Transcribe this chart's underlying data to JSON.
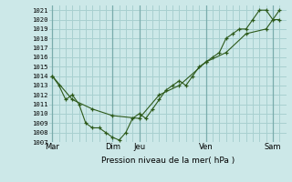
{
  "xlabel": "Pression niveau de la mer( hPa )",
  "ylim": [
    1007,
    1021.5
  ],
  "yticks": [
    1007,
    1008,
    1009,
    1010,
    1011,
    1012,
    1013,
    1014,
    1015,
    1016,
    1017,
    1018,
    1019,
    1020,
    1021
  ],
  "xtick_labels": [
    "Mar",
    "Dim",
    "Jeu",
    "Ven",
    "Sam"
  ],
  "xtick_positions": [
    0,
    4.5,
    6.5,
    11.5,
    16.5
  ],
  "day_vlines": [
    0,
    4.5,
    6.5,
    11.5,
    16.5
  ],
  "bg_color": "#cce8e8",
  "grid_color": "#a8d0d0",
  "line_color": "#2d5a1b",
  "xlim": [
    -0.2,
    17.5
  ],
  "line1_x": [
    0,
    0.5,
    1.0,
    1.5,
    2.0,
    2.5,
    3.0,
    3.5,
    4.0,
    4.5,
    5.0,
    5.5,
    6.0,
    6.5,
    7.0,
    7.5,
    8.0,
    8.5,
    9.0,
    9.5,
    10.0,
    10.5,
    11.0,
    11.5,
    12.0,
    12.5,
    13.0,
    13.5,
    14.0,
    14.5,
    15.0,
    15.5,
    16.0,
    16.5,
    17.0
  ],
  "line1_y": [
    1014.0,
    1013.0,
    1011.5,
    1012.0,
    1011.0,
    1009.0,
    1008.5,
    1008.5,
    1008.0,
    1007.5,
    1007.2,
    1008.0,
    1009.5,
    1010.0,
    1009.5,
    1010.5,
    1011.5,
    1012.5,
    1013.0,
    1013.5,
    1013.0,
    1014.0,
    1015.0,
    1015.5,
    1016.0,
    1016.5,
    1018.0,
    1018.5,
    1019.0,
    1019.0,
    1020.0,
    1021.0,
    1021.0,
    1020.0,
    1020.0
  ],
  "line2_x": [
    0,
    1.5,
    3.0,
    4.5,
    6.5,
    8.0,
    9.5,
    11.5,
    13.0,
    14.5,
    16.0,
    17.0
  ],
  "line2_y": [
    1014.0,
    1011.5,
    1010.5,
    1009.8,
    1009.5,
    1012.0,
    1013.0,
    1015.5,
    1016.5,
    1018.5,
    1019.0,
    1021.0
  ]
}
